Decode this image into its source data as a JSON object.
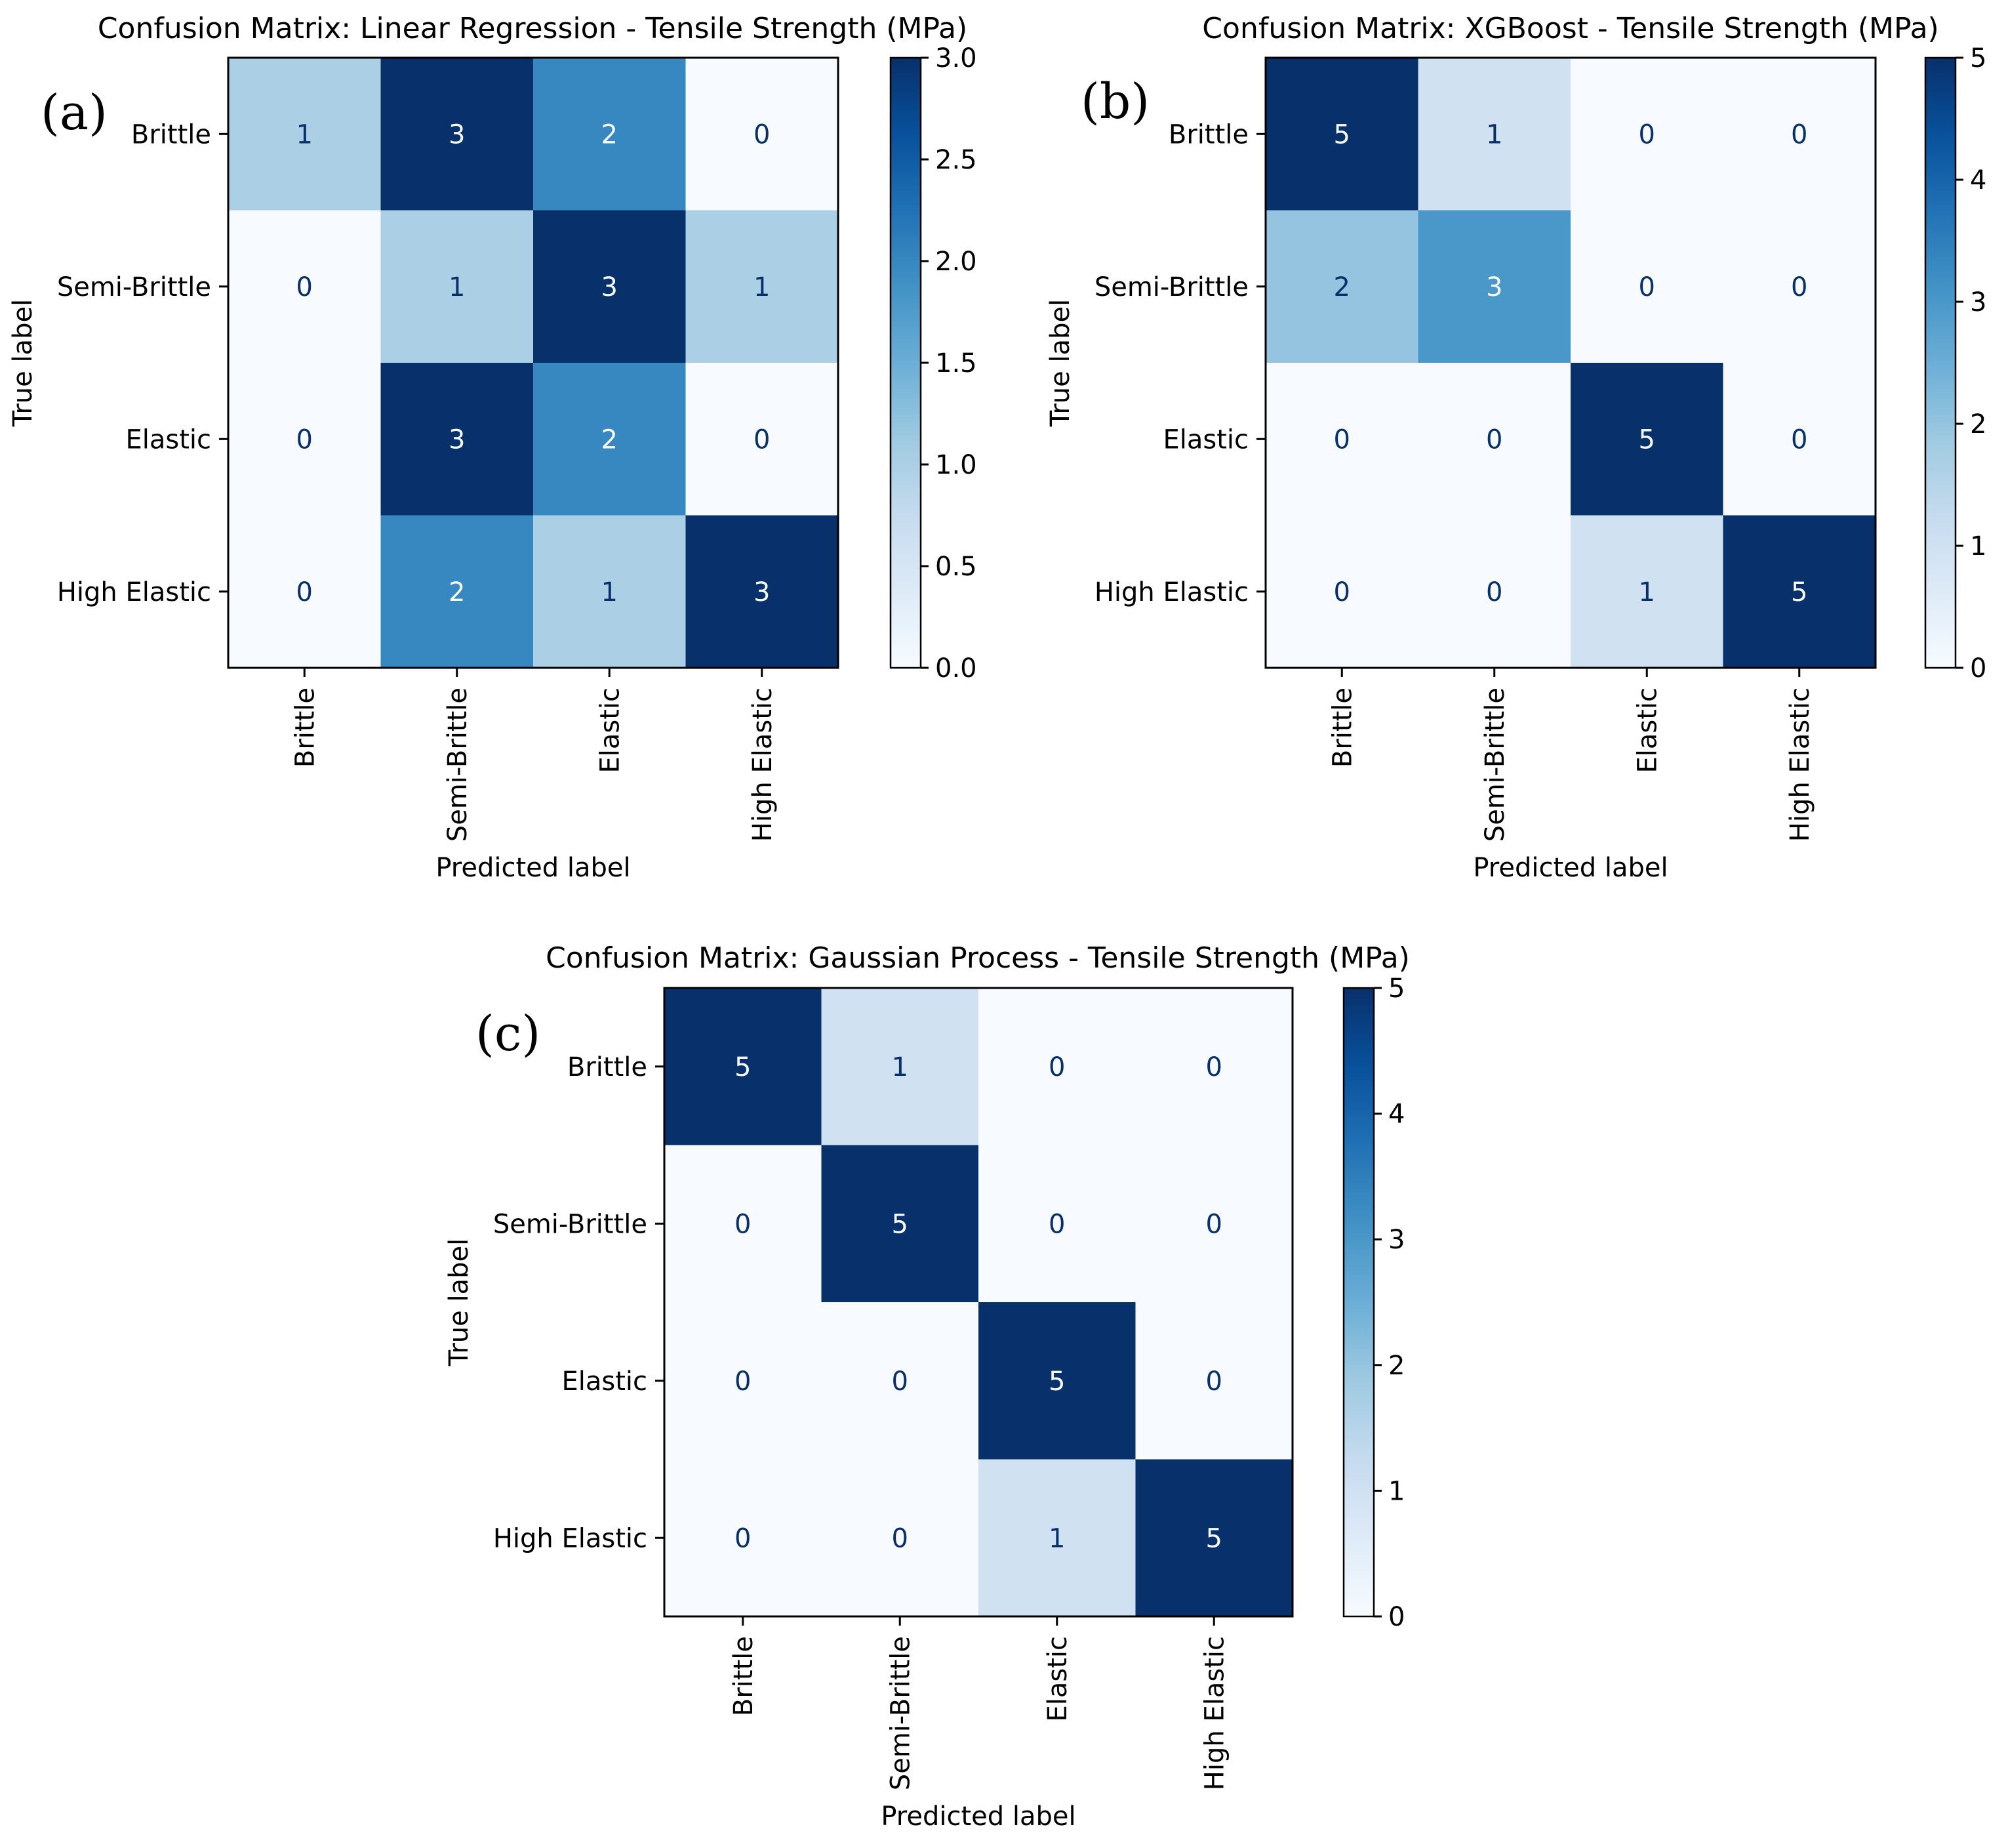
{
  "chart_data": [
    {
      "type": "heatmap",
      "panel_label": "(a)",
      "title": "Confusion Matrix: Linear Regression - Tensile Strength (MPa)",
      "xlabel": "Predicted label",
      "ylabel": "True label",
      "x_categories": [
        "Brittle",
        "Semi-Brittle",
        "Elastic",
        "High Elastic"
      ],
      "y_categories": [
        "Brittle",
        "Semi-Brittle",
        "Elastic",
        "High Elastic"
      ],
      "values": [
        [
          1,
          3,
          2,
          0
        ],
        [
          0,
          1,
          3,
          1
        ],
        [
          0,
          3,
          2,
          0
        ],
        [
          0,
          2,
          1,
          3
        ]
      ],
      "colorbar": {
        "min": 0,
        "max": 3,
        "ticks": [
          "0.0",
          "0.5",
          "1.0",
          "1.5",
          "2.0",
          "2.5",
          "3.0"
        ],
        "colormap": "Blues"
      }
    },
    {
      "type": "heatmap",
      "panel_label": "(b)",
      "title": "Confusion Matrix: XGBoost - Tensile Strength (MPa)",
      "xlabel": "Predicted label",
      "ylabel": "True label",
      "x_categories": [
        "Brittle",
        "Semi-Brittle",
        "Elastic",
        "High Elastic"
      ],
      "y_categories": [
        "Brittle",
        "Semi-Brittle",
        "Elastic",
        "High Elastic"
      ],
      "values": [
        [
          5,
          1,
          0,
          0
        ],
        [
          2,
          3,
          0,
          0
        ],
        [
          0,
          0,
          5,
          0
        ],
        [
          0,
          0,
          1,
          5
        ]
      ],
      "colorbar": {
        "min": 0,
        "max": 5,
        "ticks": [
          "0",
          "1",
          "2",
          "3",
          "4",
          "5"
        ],
        "colormap": "Blues"
      }
    },
    {
      "type": "heatmap",
      "panel_label": "(c)",
      "title": "Confusion Matrix: Gaussian Process - Tensile Strength (MPa)",
      "xlabel": "Predicted label",
      "ylabel": "True label",
      "x_categories": [
        "Brittle",
        "Semi-Brittle",
        "Elastic",
        "High Elastic"
      ],
      "y_categories": [
        "Brittle",
        "Semi-Brittle",
        "Elastic",
        "High Elastic"
      ],
      "values": [
        [
          5,
          1,
          0,
          0
        ],
        [
          0,
          5,
          0,
          0
        ],
        [
          0,
          0,
          5,
          0
        ],
        [
          0,
          0,
          1,
          5
        ]
      ],
      "colorbar": {
        "min": 0,
        "max": 5,
        "ticks": [
          "0",
          "1",
          "2",
          "3",
          "4",
          "5"
        ],
        "colormap": "Blues"
      }
    }
  ],
  "colors": {
    "text_on_light": "#08306b",
    "text_on_dark": "#f7fbff",
    "axis": "#000000",
    "background": "#ffffff"
  }
}
